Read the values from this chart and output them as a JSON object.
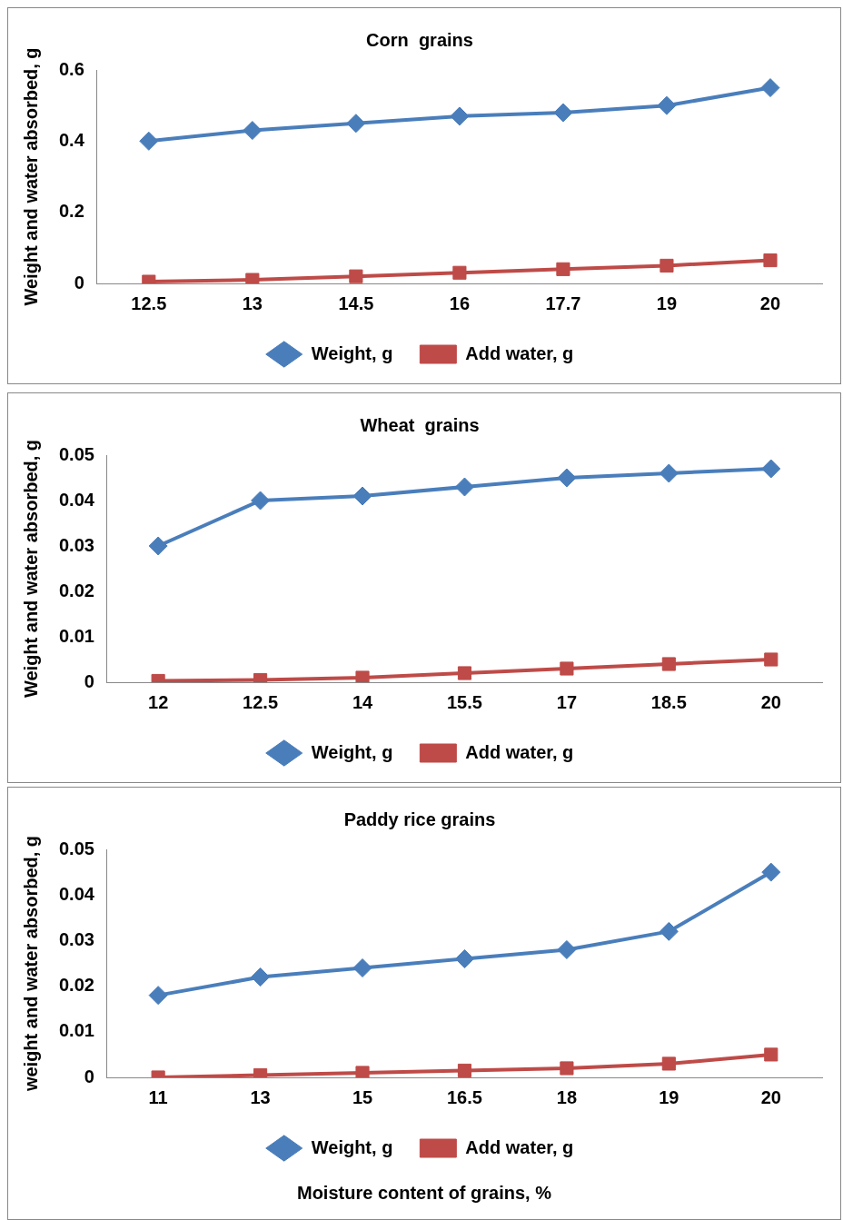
{
  "chart_data": [
    {
      "type": "line",
      "title": "Corn  grains",
      "ylabel": "Weight and water absorbed, g",
      "categories": [
        "12.5",
        "13",
        "14.5",
        "16",
        "17.7",
        "19",
        "20"
      ],
      "series": [
        {
          "name": "Weight, g",
          "color": "#4a7ebb",
          "marker": "diamond",
          "values": [
            0.4,
            0.43,
            0.45,
            0.47,
            0.48,
            0.5,
            0.55
          ]
        },
        {
          "name": "Add water, g",
          "color": "#be4b48",
          "marker": "square",
          "values": [
            0.005,
            0.01,
            0.02,
            0.03,
            0.04,
            0.05,
            0.065
          ]
        }
      ],
      "ylim": [
        0,
        0.6
      ],
      "yticks": [
        0,
        0.2,
        0.4,
        0.6
      ],
      "grid": false,
      "legend": "bottom"
    },
    {
      "type": "line",
      "title": "Wheat  grains",
      "ylabel": "Weight and water absorbed, g",
      "categories": [
        "12",
        "12.5",
        "14",
        "15.5",
        "17",
        "18.5",
        "20"
      ],
      "series": [
        {
          "name": "Weight, g",
          "color": "#4a7ebb",
          "marker": "diamond",
          "values": [
            0.03,
            0.04,
            0.041,
            0.043,
            0.045,
            0.046,
            0.047
          ]
        },
        {
          "name": "Add water, g",
          "color": "#be4b48",
          "marker": "square",
          "values": [
            0.0003,
            0.0005,
            0.001,
            0.002,
            0.003,
            0.004,
            0.005
          ]
        }
      ],
      "ylim": [
        0,
        0.05
      ],
      "yticks": [
        0,
        0.01,
        0.02,
        0.03,
        0.04,
        0.05
      ],
      "grid": false,
      "legend": "bottom"
    },
    {
      "type": "line",
      "title": "Paddy rice grains",
      "ylabel": "weight and water absorbed, g",
      "xlabel": "Moisture content of grains, %",
      "categories": [
        "11",
        "13",
        "15",
        "16.5",
        "18",
        "19",
        "20"
      ],
      "series": [
        {
          "name": "Weight, g",
          "color": "#4a7ebb",
          "marker": "diamond",
          "values": [
            0.018,
            0.022,
            0.024,
            0.026,
            0.028,
            0.032,
            0.045
          ]
        },
        {
          "name": "Add water, g",
          "color": "#be4b48",
          "marker": "square",
          "values": [
            0,
            0.0005,
            0.001,
            0.0015,
            0.002,
            0.003,
            0.005
          ]
        }
      ],
      "ylim": [
        0,
        0.05
      ],
      "yticks": [
        0,
        0.01,
        0.02,
        0.03,
        0.04,
        0.05
      ],
      "grid": false,
      "legend": "bottom"
    }
  ]
}
